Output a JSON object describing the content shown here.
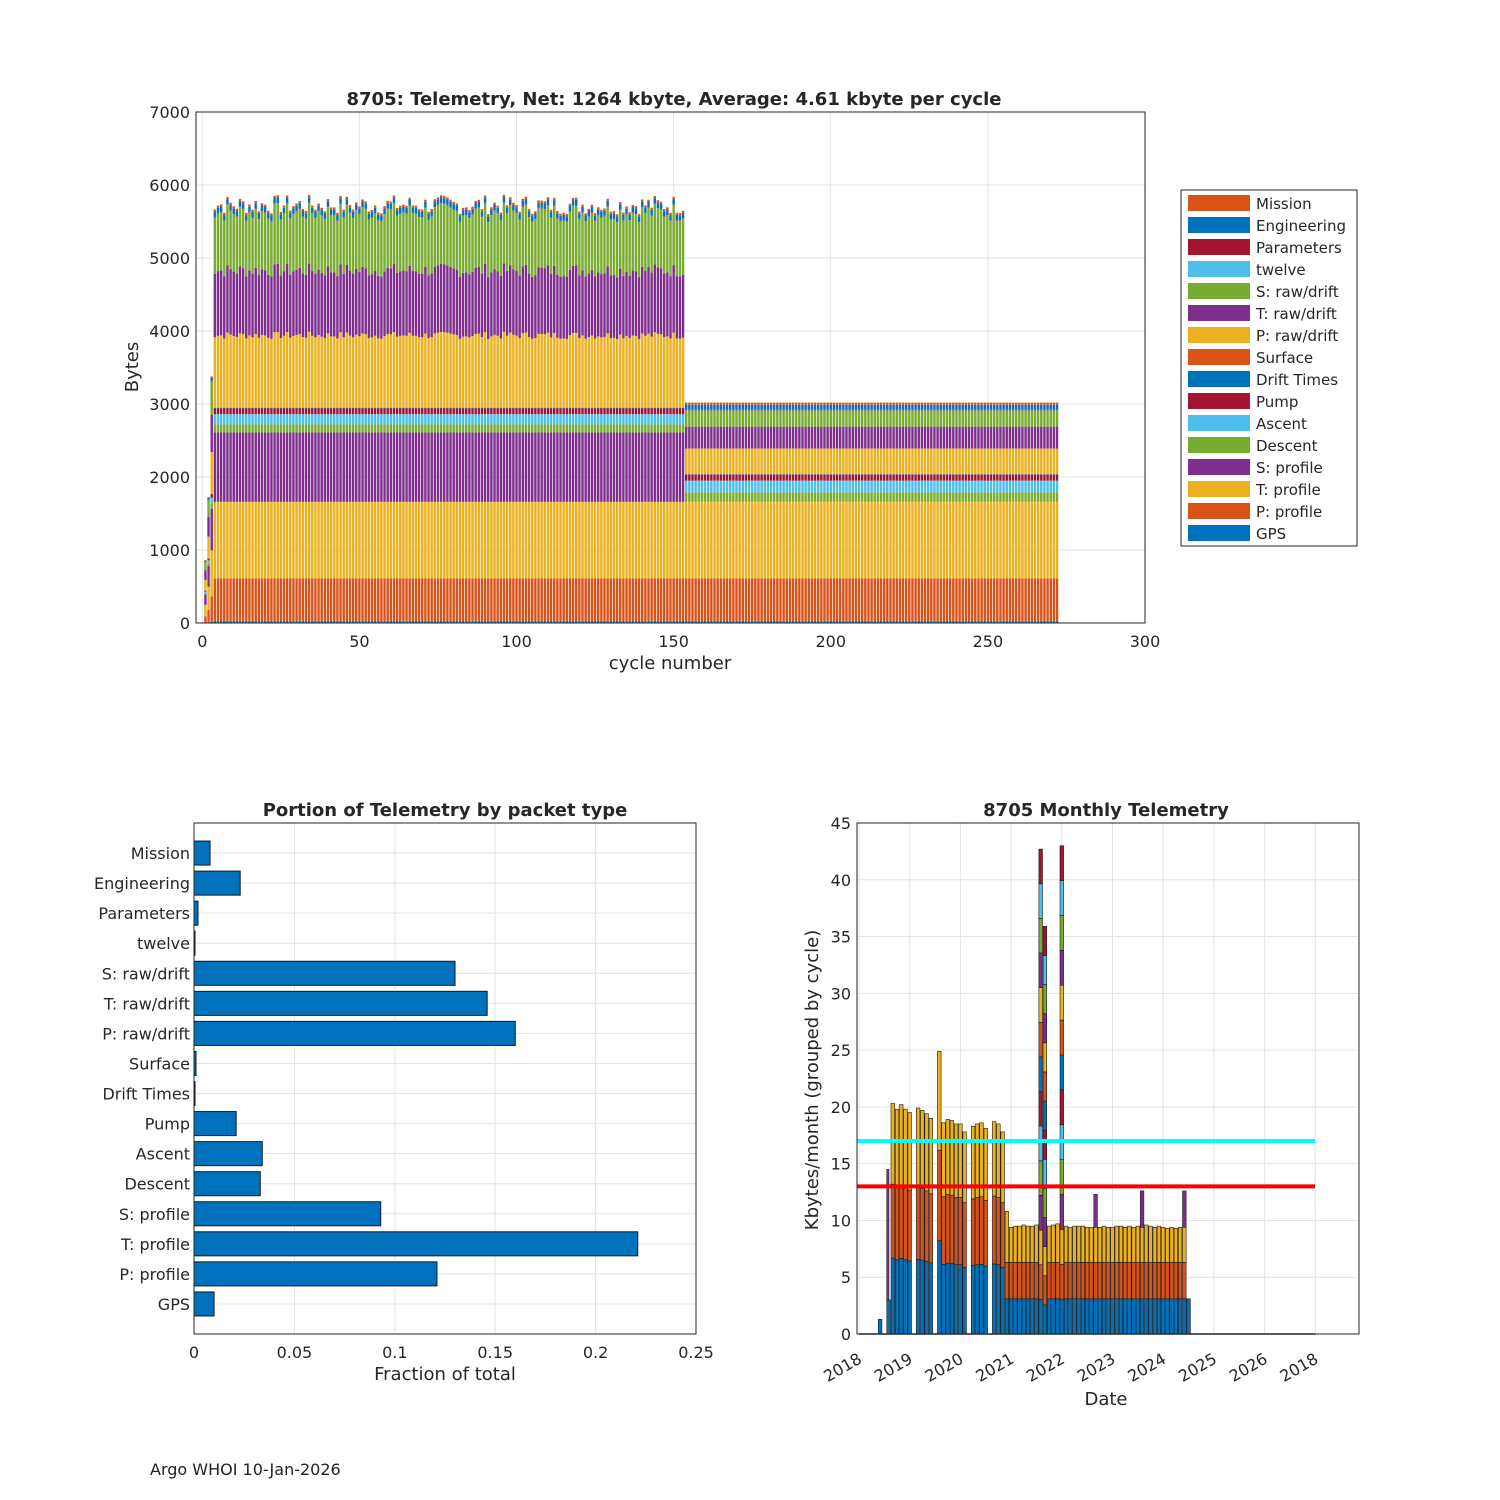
{
  "footer": "Argo WHOI 10-Jan-2026",
  "colors": {
    "orange": "#D95319",
    "blue": "#0072BD",
    "crimson": "#A2142F",
    "lightblue": "#4DBEEE",
    "green": "#77AC30",
    "purple": "#7E2F8E",
    "yellow": "#EDB120",
    "cyan": "#00FFFF",
    "red": "#FF0000"
  },
  "chart_data": [
    {
      "type": "bar",
      "stacked": true,
      "title": "8705: Telemetry, Net:   1264 kbyte,  Average: 4.61 kbyte per cycle",
      "xlabel": "cycle number",
      "ylabel": "Bytes",
      "xlim": [
        -2,
        300
      ],
      "ylim": [
        0,
        7000
      ],
      "xticks": [
        0,
        50,
        100,
        150,
        200,
        250,
        300
      ],
      "yticks": [
        0,
        1000,
        2000,
        3000,
        4000,
        5000,
        6000,
        7000
      ],
      "grid": true,
      "legend_position": "right",
      "series_bottom_to_top": [
        {
          "name": "GPS",
          "color": "blue",
          "phase1": 30,
          "phase2": 30
        },
        {
          "name": "P: profile",
          "color": "orange",
          "phase1": 580,
          "phase2": 580
        },
        {
          "name": "T: profile",
          "color": "yellow",
          "phase1": 1050,
          "phase2": 1050
        },
        {
          "name": "S: profile",
          "color": "purple",
          "phase1": 950,
          "phase2": 0
        },
        {
          "name": "Descent",
          "color": "green",
          "phase1": 110,
          "phase2": 130
        },
        {
          "name": "Ascent",
          "color": "lightblue",
          "phase1": 140,
          "phase2": 160
        },
        {
          "name": "Pump",
          "color": "crimson",
          "phase1": 80,
          "phase2": 80
        },
        {
          "name": "Drift Times",
          "color": "blue",
          "phase1": 5,
          "phase2": 5
        },
        {
          "name": "Surface",
          "color": "orange",
          "phase1": 5,
          "phase2": 5
        },
        {
          "name": "P: raw/drift",
          "color": "yellow",
          "phase1": 1000,
          "phase2": 350
        },
        {
          "name": "T: raw/drift",
          "color": "purple",
          "phase1": 900,
          "phase2": 300
        },
        {
          "name": "S: raw/drift",
          "color": "green",
          "phase1": 800,
          "phase2": 220
        },
        {
          "name": "twelve",
          "color": "lightblue",
          "phase1": 5,
          "phase2": 5
        },
        {
          "name": "Parameters",
          "color": "crimson",
          "phase1": 5,
          "phase2": 5
        },
        {
          "name": "Engineering",
          "color": "blue",
          "phase1": 70,
          "phase2": 70
        },
        {
          "name": "Mission",
          "color": "orange",
          "phase1": 30,
          "phase2": 30
        }
      ],
      "cycles": {
        "first": 1,
        "last": 272,
        "phase_change_after": 153
      },
      "legend": [
        "Mission",
        "Engineering",
        "Parameters",
        "twelve",
        "S: raw/drift",
        "T: raw/drift",
        "P: raw/drift",
        "Surface",
        "Drift Times",
        "Pump",
        "Ascent",
        "Descent",
        "S: profile",
        "T: profile",
        "P: profile",
        "GPS"
      ]
    },
    {
      "type": "bar",
      "orientation": "horizontal",
      "title": "Portion of Telemetry by packet type",
      "xlabel": "Fraction of total",
      "ylabel": "",
      "xlim": [
        0,
        0.25
      ],
      "xticks": [
        "0",
        "0.05",
        "0.1",
        "0.15",
        "0.2",
        "0.25"
      ],
      "grid": true,
      "categories": [
        "Mission",
        "Engineering",
        "Parameters",
        "twelve",
        "S: raw/drift",
        "T: raw/drift",
        "P: raw/drift",
        "Surface",
        "Drift Times",
        "Pump",
        "Ascent",
        "Descent",
        "S: profile",
        "T: profile",
        "P: profile",
        "GPS"
      ],
      "values": [
        0.008,
        0.023,
        0.002,
        0.0005,
        0.13,
        0.146,
        0.16,
        0.001,
        0.0005,
        0.021,
        0.034,
        0.033,
        0.093,
        0.221,
        0.121,
        0.01
      ]
    },
    {
      "type": "bar",
      "stacked": true,
      "title": "8705 Monthly Telemetry",
      "xlabel": "Date",
      "ylabel": "Kbytes/month (grouped by cycle)",
      "ylim": [
        0,
        45
      ],
      "yticks": [
        0,
        5,
        10,
        15,
        20,
        25,
        30,
        35,
        40,
        45
      ],
      "xticks": [
        "2018",
        "2019",
        "2020",
        "2021",
        "2022",
        "2023",
        "2024",
        "2025",
        "2026",
        "2018"
      ],
      "grid": true,
      "reference_lines": [
        {
          "value": 17,
          "color": "cyan"
        },
        {
          "value": 13,
          "color": "red"
        }
      ],
      "months_note": "monthly index 0 = first tick (2018), 12 months per year tick",
      "bars": [
        {
          "m": 5,
          "total": 1.3
        },
        {
          "m": 7,
          "total": 3.0,
          "tall": 14.5
        },
        {
          "m": 8,
          "total": 20.3
        },
        {
          "m": 9,
          "total": 19.8
        },
        {
          "m": 10,
          "total": 20.2
        },
        {
          "m": 11,
          "total": 19.8
        },
        {
          "m": 12,
          "total": 19.5
        },
        {
          "m": 14,
          "total": 19.9
        },
        {
          "m": 15,
          "total": 19.7
        },
        {
          "m": 16,
          "total": 19.4
        },
        {
          "m": 17,
          "total": 19.0
        },
        {
          "m": 19,
          "total": 24.9
        },
        {
          "m": 20,
          "total": 18.6
        },
        {
          "m": 21,
          "total": 18.9
        },
        {
          "m": 22,
          "total": 18.8
        },
        {
          "m": 23,
          "total": 18.5
        },
        {
          "m": 24,
          "total": 18.5
        },
        {
          "m": 25,
          "total": 17.8
        },
        {
          "m": 27,
          "total": 18.3
        },
        {
          "m": 28,
          "total": 18.5
        },
        {
          "m": 29,
          "total": 18.6
        },
        {
          "m": 30,
          "total": 18.1
        },
        {
          "m": 32,
          "total": 18.7
        },
        {
          "m": 33,
          "total": 18.5
        },
        {
          "m": 34,
          "total": 17.8
        },
        {
          "m": 35,
          "total": 10.8
        },
        {
          "m": 36,
          "total": 9.4
        },
        {
          "m": 37,
          "total": 9.5
        },
        {
          "m": 38,
          "total": 9.5
        },
        {
          "m": 39,
          "total": 9.6
        },
        {
          "m": 40,
          "total": 9.5
        },
        {
          "m": 41,
          "total": 9.5
        },
        {
          "m": 42,
          "total": 9.6
        },
        {
          "m": 43,
          "total": 42.7
        },
        {
          "m": 44,
          "total": 35.9
        },
        {
          "m": 45,
          "total": 9.5
        },
        {
          "m": 46,
          "total": 9.6
        },
        {
          "m": 47,
          "total": 9.7
        },
        {
          "m": 48,
          "total": 43.0
        },
        {
          "m": 49,
          "total": 9.5
        },
        {
          "m": 50,
          "total": 9.4
        },
        {
          "m": 51,
          "total": 9.5
        },
        {
          "m": 52,
          "total": 9.5
        },
        {
          "m": 53,
          "total": 9.5
        },
        {
          "m": 54,
          "total": 9.4
        },
        {
          "m": 55,
          "total": 9.4
        },
        {
          "m": 56,
          "total": 12.3
        },
        {
          "m": 57,
          "total": 9.4
        },
        {
          "m": 58,
          "total": 9.5
        },
        {
          "m": 59,
          "total": 9.4
        },
        {
          "m": 60,
          "total": 9.4
        },
        {
          "m": 61,
          "total": 9.5
        },
        {
          "m": 62,
          "total": 9.5
        },
        {
          "m": 63,
          "total": 9.4
        },
        {
          "m": 64,
          "total": 9.5
        },
        {
          "m": 65,
          "total": 9.4
        },
        {
          "m": 66,
          "total": 9.5
        },
        {
          "m": 67,
          "total": 12.6
        },
        {
          "m": 68,
          "total": 9.6
        },
        {
          "m": 69,
          "total": 9.5
        },
        {
          "m": 70,
          "total": 9.4
        },
        {
          "m": 71,
          "total": 9.5
        },
        {
          "m": 72,
          "total": 9.4
        },
        {
          "m": 73,
          "total": 9.3
        },
        {
          "m": 74,
          "total": 9.4
        },
        {
          "m": 75,
          "total": 9.3
        },
        {
          "m": 76,
          "total": 9.4
        },
        {
          "m": 77,
          "total": 12.6
        },
        {
          "m": 78,
          "total": 3.1
        }
      ]
    }
  ]
}
